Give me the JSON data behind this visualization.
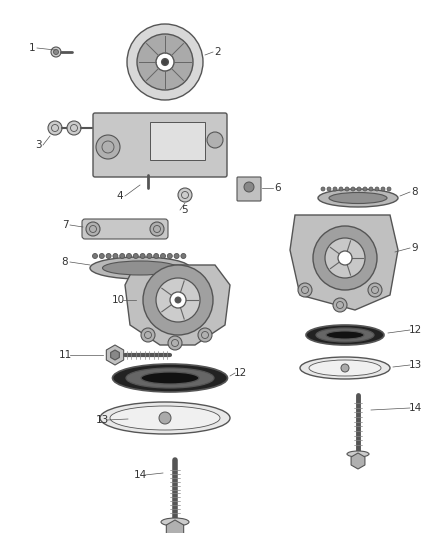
{
  "bg_color": "#ffffff",
  "figsize": [
    4.38,
    5.33
  ],
  "dpi": 100,
  "gray": "#555555",
  "dgray": "#333333",
  "lgray": "#888888",
  "parts_lw": 0.8
}
